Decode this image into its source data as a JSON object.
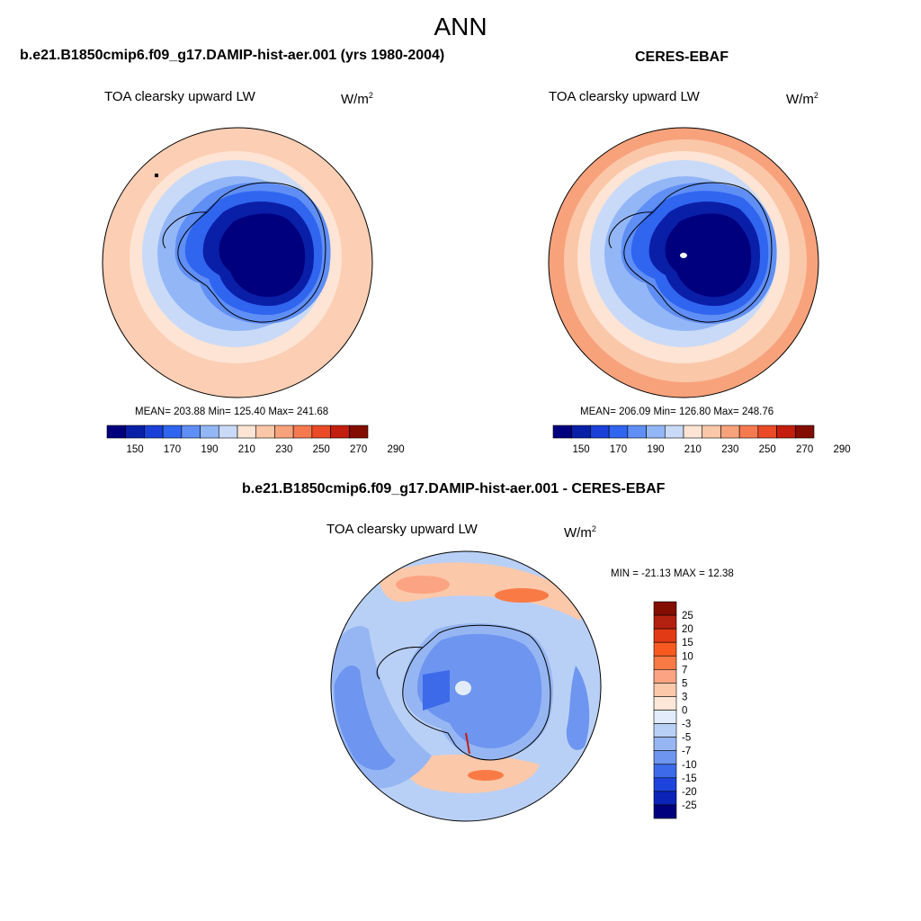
{
  "title": "ANN",
  "panels": [
    {
      "heading": "b.e21.B1850cmip6.f09_g17.DAMIP-hist-aer.001 (yrs 1980-2004)",
      "variable": "TOA clearsky upward LW",
      "units": "W/m",
      "units_sup": "2",
      "stats": "MEAN= 203.88  Min= 125.40  Max= 241.68",
      "colorbar_ticks": [
        "150",
        "170",
        "190",
        "210",
        "230",
        "250",
        "270",
        "290"
      ]
    },
    {
      "heading": "CERES-EBAF",
      "variable": "TOA clearsky upward LW",
      "units": "W/m",
      "units_sup": "2",
      "stats": "MEAN= 206.09  Min= 126.80  Max= 248.76",
      "colorbar_ticks": [
        "150",
        "170",
        "190",
        "210",
        "230",
        "250",
        "270",
        "290"
      ]
    },
    {
      "heading": "b.e21.B1850cmip6.f09_g17.DAMIP-hist-aer.001 - CERES-EBAF",
      "variable": "TOA clearsky upward LW",
      "units": "W/m",
      "units_sup": "2",
      "stats": "MIN = -21.13 MAX =  12.38",
      "colorbar_ticks": [
        "25",
        "20",
        "15",
        "10",
        "7",
        "5",
        "3",
        "0",
        "-3",
        "-5",
        "-7",
        "-10",
        "-15",
        "-20",
        "-25"
      ]
    }
  ],
  "colors": {
    "abs_scale": [
      "#00007f",
      "#0a1fa8",
      "#1a40d8",
      "#3065f0",
      "#5f8ef5",
      "#93b6f7",
      "#c8daf8",
      "#fde4d4",
      "#fbc7a9",
      "#f8a27c",
      "#f57a50",
      "#ea4a26",
      "#c41e0e",
      "#830d00"
    ],
    "diff_scale": [
      "#830d00",
      "#b32010",
      "#e23a14",
      "#f85a20",
      "#fa7a45",
      "#fba382",
      "#fcc8aa",
      "#fde7d8",
      "#e2ecfa",
      "#b9d0f6",
      "#96b6f3",
      "#6e95ef",
      "#3d6ae9",
      "#1c44dc",
      "#0a24b8",
      "#00007f"
    ]
  }
}
